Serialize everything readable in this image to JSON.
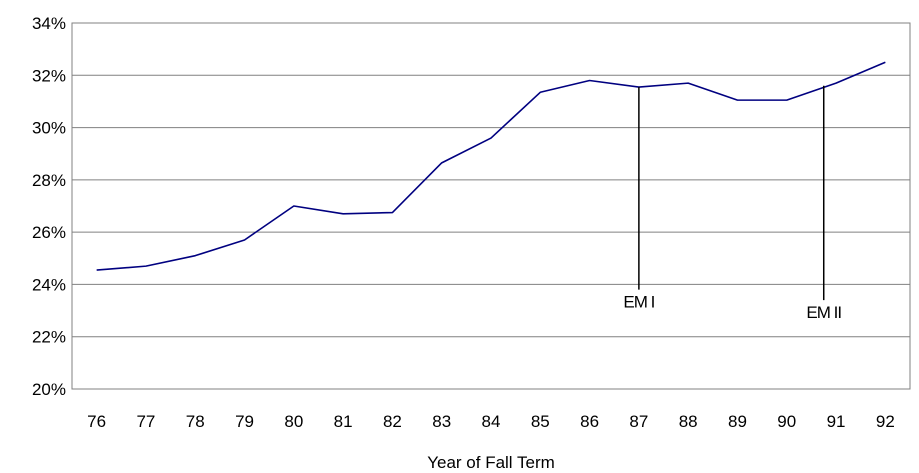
{
  "chart_data": {
    "type": "line",
    "title": "",
    "xlabel": "Year of Fall Term",
    "ylabel": "",
    "categories": [
      "76",
      "77",
      "78",
      "79",
      "80",
      "81",
      "82",
      "83",
      "84",
      "85",
      "86",
      "87",
      "88",
      "89",
      "90",
      "91",
      "92"
    ],
    "series": [
      {
        "name": "",
        "color": "#000080",
        "values": [
          24.55,
          24.7,
          25.1,
          25.7,
          27.0,
          26.7,
          26.75,
          28.65,
          29.6,
          31.35,
          31.8,
          31.55,
          31.7,
          31.05,
          31.05,
          31.7,
          32.5
        ]
      }
    ],
    "ylim": [
      20,
      34
    ],
    "yticks": [
      20,
      22,
      24,
      26,
      28,
      30,
      32,
      34
    ],
    "ytick_format": "percent",
    "grid": true,
    "legend": "none",
    "annotations": [
      {
        "label": "EM I",
        "x": 87,
        "y": 31.55,
        "line_to": 23.8
      },
      {
        "label": "EM II",
        "x": 90.75,
        "y": 31.6,
        "line_to": 23.4
      }
    ]
  }
}
